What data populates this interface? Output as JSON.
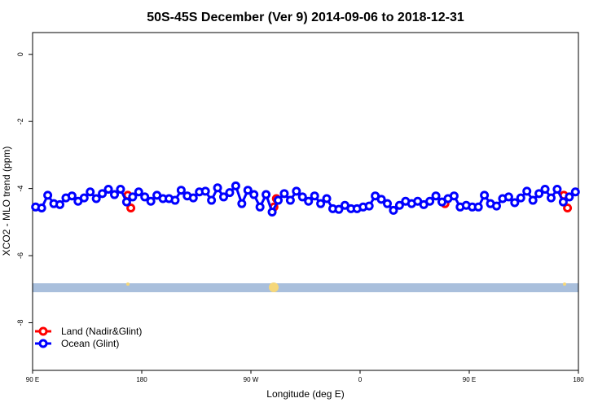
{
  "chart_data": {
    "type": "line",
    "title": "50S-45S December (Ver 9)   2014-09-06 to 2018-12-31",
    "x_label": "Longitude (deg E)",
    "y_label": "XCO2 - MLO trend (ppm)",
    "xlim": [
      90,
      540
    ],
    "xticks": [
      {
        "value": 90,
        "label": "90 E"
      },
      180,
      {
        "value": 270,
        "label": "90 W"
      },
      {
        "value": 360,
        "label": "0"
      },
      {
        "value": 450,
        "label": "90 E"
      },
      {
        "value": 540,
        "label": "180"
      }
    ],
    "ylim": [
      -9.42,
      0.65
    ],
    "yticks": [
      0,
      -2,
      -4,
      -6,
      -8
    ],
    "legend": "bottom-left",
    "series": [
      {
        "name": "Land (Nadir&Glint)",
        "color": "#ff0000",
        "x": [
          168.5,
          171,
          230,
          289,
          291,
          360,
          430,
          480,
          528,
          531
        ],
        "values": [
          -4.2,
          -4.58,
          null,
          -4.55,
          -4.3,
          null,
          -4.45,
          null,
          -4.2,
          -4.58
        ]
      },
      {
        "name": "Ocean (Glint)",
        "color": "#0000ff",
        "x": [
          92.5,
          97.5,
          102.5,
          107.5,
          112.5,
          117.5,
          122.5,
          127.5,
          132.5,
          137.5,
          142.5,
          147.5,
          152.5,
          157.5,
          162.5,
          167.5,
          172.5,
          177.5,
          182.5,
          187.5,
          192.5,
          197.5,
          202.5,
          207.5,
          212.5,
          217.5,
          222.5,
          227.5,
          232.5,
          237.5,
          242.5,
          247.5,
          252.5,
          257.5,
          262.5,
          267.5,
          272.5,
          277.5,
          282.5,
          287.5,
          292.5,
          297.5,
          302.5,
          307.5,
          312.5,
          317.5,
          322.5,
          327.5,
          332.5,
          337.5,
          342.5,
          347.5,
          352.5,
          357.5,
          362.5,
          367.5,
          372.5,
          377.5,
          382.5,
          387.5,
          392.5,
          397.5,
          402.5,
          407.5,
          412.5,
          417.5,
          422.5,
          427.5,
          432.5,
          437.5,
          442.5,
          447.5,
          452.5,
          457.5,
          462.5,
          467.5,
          472.5,
          477.5,
          482.5,
          487.5,
          492.5,
          497.5,
          502.5,
          507.5,
          512.5,
          517.5,
          522.5,
          527.5,
          532.5,
          537.5
        ],
        "values": [
          -4.55,
          -4.58,
          -4.2,
          -4.45,
          -4.48,
          -4.28,
          -4.22,
          -4.38,
          -4.28,
          -4.1,
          -4.3,
          -4.15,
          -4.02,
          -4.18,
          -4.02,
          -4.4,
          -4.25,
          -4.1,
          -4.25,
          -4.38,
          -4.2,
          -4.3,
          -4.3,
          -4.35,
          -4.05,
          -4.22,
          -4.28,
          -4.1,
          -4.08,
          -4.35,
          -3.98,
          -4.25,
          -4.12,
          -3.92,
          -4.45,
          -4.05,
          -4.18,
          -4.55,
          -4.18,
          -4.7,
          -4.35,
          -4.15,
          -4.35,
          -4.08,
          -4.25,
          -4.38,
          -4.22,
          -4.45,
          -4.3,
          -4.6,
          -4.62,
          -4.5,
          -4.6,
          -4.6,
          -4.55,
          -4.52,
          -4.22,
          -4.32,
          -4.45,
          -4.65,
          -4.5,
          -4.38,
          -4.45,
          -4.38,
          -4.48,
          -4.38,
          -4.22,
          -4.4,
          -4.3,
          -4.22,
          -4.55,
          -4.5,
          -4.55,
          -4.55,
          -4.2,
          -4.45,
          -4.52,
          -4.3,
          -4.25,
          -4.42,
          -4.28,
          -4.08,
          -4.35,
          -4.15,
          -4.02,
          -4.28,
          -4.02,
          -4.4,
          -4.25,
          -4.1
        ]
      }
    ]
  }
}
